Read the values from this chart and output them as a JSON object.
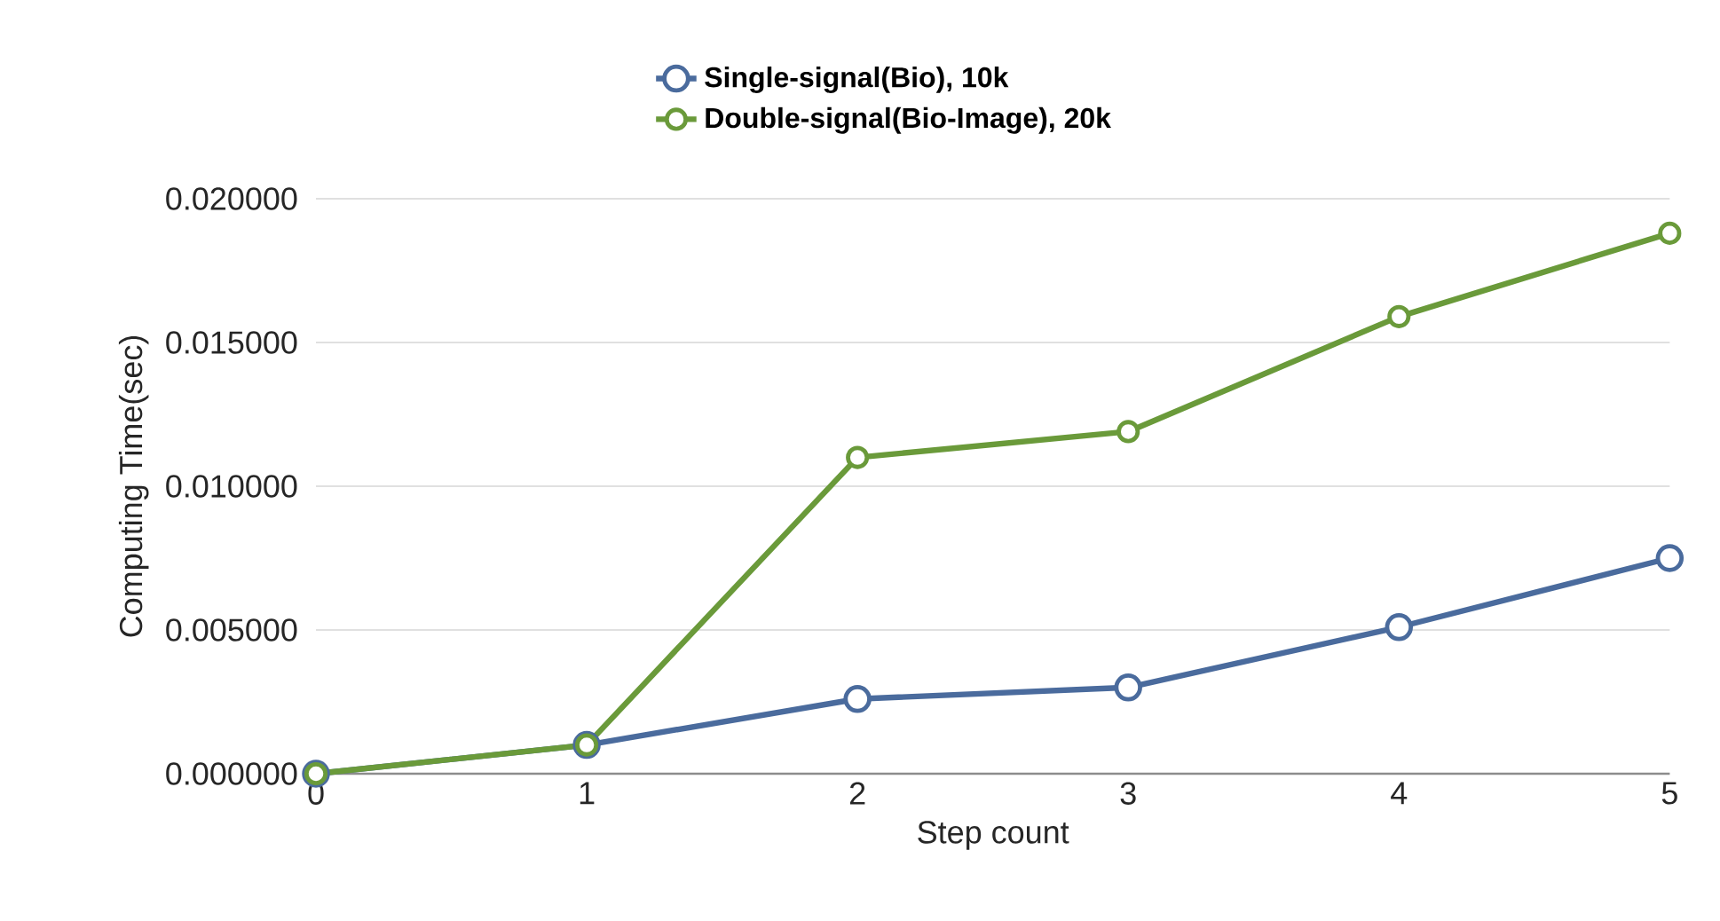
{
  "chart_data": {
    "type": "line",
    "xlabel": "Step count",
    "ylabel": "Computing Time(sec)",
    "x": [
      0,
      1,
      2,
      3,
      4,
      5
    ],
    "series": [
      {
        "name": "Single-signal(Bio), 10k",
        "color": "#4a6b9d",
        "values": [
          0,
          0.001,
          0.0026,
          0.003,
          0.0051,
          0.0075
        ]
      },
      {
        "name": "Double-signal(Bio-Image), 20k",
        "color": "#6a9a3a",
        "values": [
          0,
          0.001,
          0.011,
          0.0119,
          0.0159,
          0.0188
        ]
      }
    ],
    "xlim": [
      0,
      5
    ],
    "xticks": [
      0,
      1,
      2,
      3,
      4,
      5
    ],
    "ylim": [
      0,
      0.02
    ],
    "yticks": [
      {
        "value": 0,
        "label": "0.000000"
      },
      {
        "value": 0.005,
        "label": "0.005000"
      },
      {
        "value": 0.01,
        "label": "0.010000"
      },
      {
        "value": 0.015,
        "label": "0.015000"
      },
      {
        "value": 0.02,
        "label": "0.020000"
      }
    ],
    "grid": "y",
    "legend": "top",
    "marker": "circle",
    "line_style": "solid"
  }
}
